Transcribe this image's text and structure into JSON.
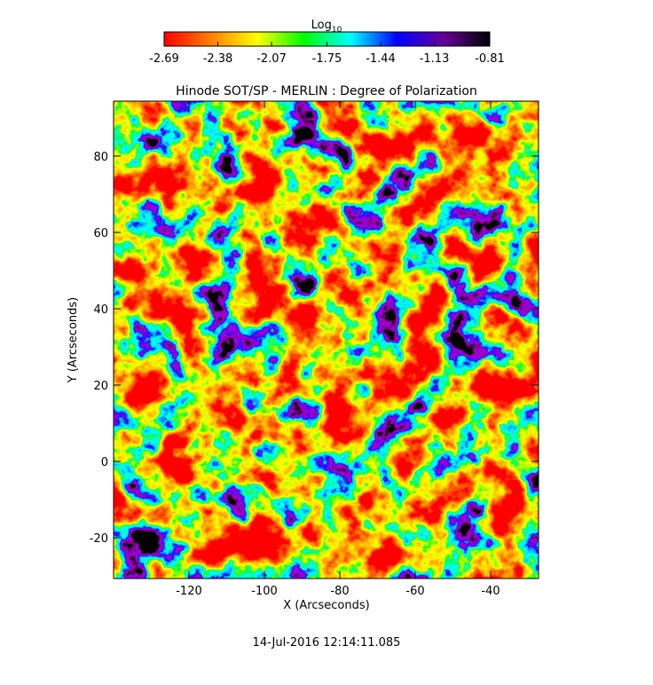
{
  "chart_data": {
    "type": "heatmap",
    "title": "Hinode SOT/SP - MERLIN : Degree of Polarization",
    "x_label": "X (Arcseconds)",
    "y_label": "Y (Arcseconds)",
    "xlim": [
      -140,
      -27.3
    ],
    "ylim": [
      -30.7,
      94.4
    ],
    "xticks": [
      -120,
      -100,
      -80,
      -60,
      -40
    ],
    "yticks": [
      -20,
      0,
      20,
      40,
      60,
      80
    ],
    "colorbar": {
      "label": {
        "base": "Log",
        "subscript": "10"
      },
      "lim": [
        -2.69,
        -0.81
      ],
      "ticks": [
        -2.69,
        -2.38,
        -2.07,
        -1.75,
        -1.44,
        -1.13,
        -0.81
      ],
      "colors": [
        "#ff0000",
        "#ff8000",
        "#ffff00",
        "#00ff00",
        "#00ffff",
        "#0000ff",
        "#660099",
        "#000000"
      ]
    },
    "footer": "14-Jul-2016 12:14:11.085"
  }
}
